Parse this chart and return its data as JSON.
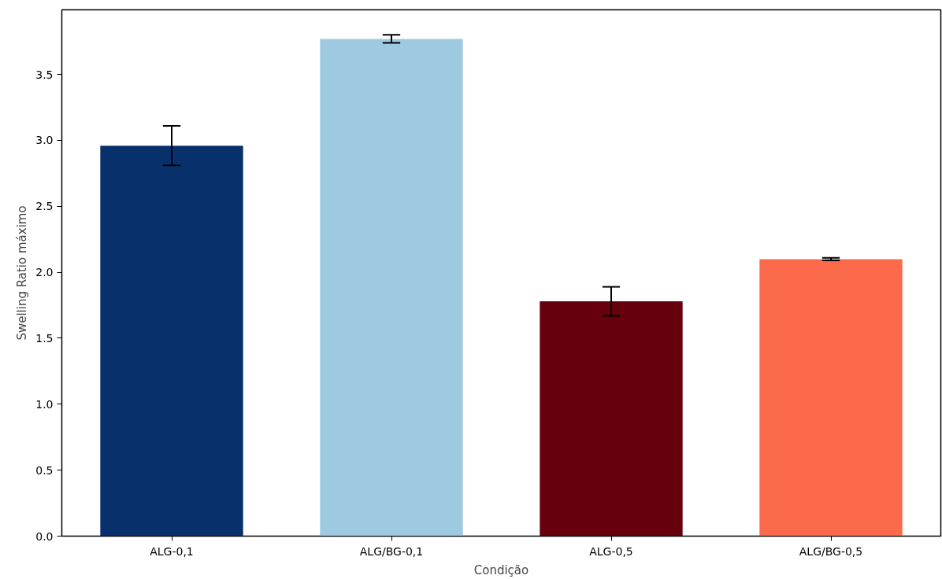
{
  "chart_data": {
    "type": "bar",
    "xlabel": "Condição",
    "ylabel": "Swelling Ratio máximo",
    "categories": [
      "ALG-0,1",
      "ALG/BG-0,1",
      "ALG-0,5",
      "ALG/BG-0,5"
    ],
    "values": [
      2.96,
      3.77,
      1.78,
      2.1
    ],
    "colors": [
      "#08306b",
      "#9ecae1",
      "#67000d",
      "#fb6a4a"
    ],
    "errors": [
      0.15,
      0.03,
      0.11,
      0.01
    ],
    "ylim": [
      0,
      3.99
    ],
    "yticks": [
      {
        "value": 0,
        "label": "0.0"
      },
      {
        "value": 0.5,
        "label": "0.5"
      },
      {
        "value": 1,
        "label": "1.0"
      },
      {
        "value": 1.5,
        "label": "1.5"
      },
      {
        "value": 2,
        "label": "2.0"
      },
      {
        "value": 2.5,
        "label": "2.5"
      },
      {
        "value": 3,
        "label": "3.0"
      },
      {
        "value": 3.5,
        "label": "3.5"
      }
    ],
    "grid": false
  }
}
